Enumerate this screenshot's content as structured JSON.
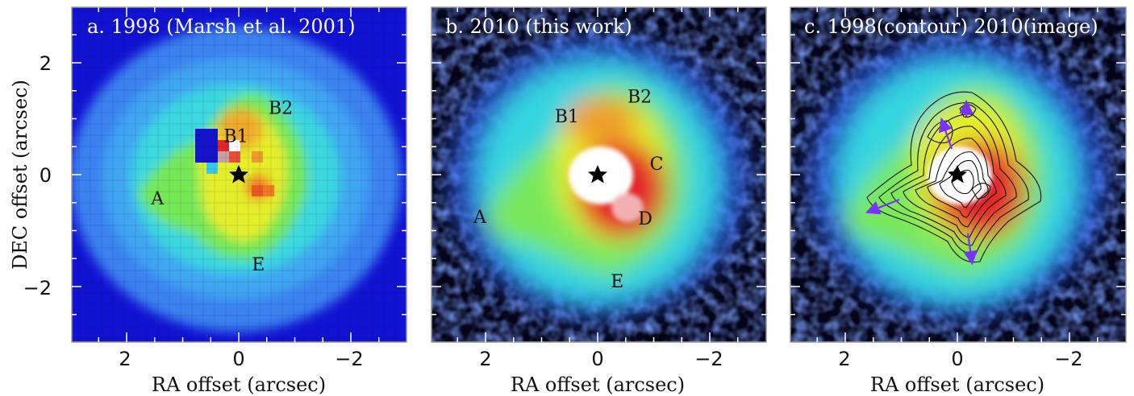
{
  "figure": {
    "ylabel": "DEC offset (arcsec)",
    "xlabel": "RA offset (arcsec)",
    "x_ticks": [
      "2",
      "0",
      "−2"
    ],
    "y_ticks": [
      "2",
      "0",
      "−2"
    ],
    "panels": [
      {
        "id": "a",
        "title": "a. 1998 (Marsh et al. 2001)",
        "style": "pixelated",
        "features": [
          {
            "label": "A",
            "ra": 1.45,
            "dec": -0.42
          },
          {
            "label": "B1",
            "ra": 0.05,
            "dec": 0.7
          },
          {
            "label": "B2",
            "ra": -0.75,
            "dec": 1.2
          },
          {
            "label": "E",
            "ra": -0.35,
            "dec": -1.6
          }
        ]
      },
      {
        "id": "b",
        "title": "b. 2010 (this work)",
        "style": "smooth",
        "features": [
          {
            "label": "A",
            "ra": 2.1,
            "dec": -0.75
          },
          {
            "label": "B1",
            "ra": 0.55,
            "dec": 1.05
          },
          {
            "label": "B2",
            "ra": -0.75,
            "dec": 1.4
          },
          {
            "label": "C",
            "ra": -1.05,
            "dec": 0.2
          },
          {
            "label": "D",
            "ra": -0.85,
            "dec": -0.78
          },
          {
            "label": "E",
            "ra": -0.35,
            "dec": -1.9
          }
        ]
      },
      {
        "id": "c",
        "title": "c. 1998(contour)   2010(image)",
        "style": "smooth-contour",
        "features": []
      }
    ],
    "colors": {
      "background": "#1010cc",
      "outer": "#3d86f0",
      "cyan": "#35dede",
      "green": "#7bea55",
      "yellow": "#e6ef2a",
      "orange": "#ef8f22",
      "red": "#e4262b",
      "white": "#ffffff",
      "arrow": "#7a33ff"
    },
    "axis_range": {
      "ra": [
        2.9,
        -2.9
      ],
      "dec": [
        -2.95,
        2.95
      ]
    }
  }
}
